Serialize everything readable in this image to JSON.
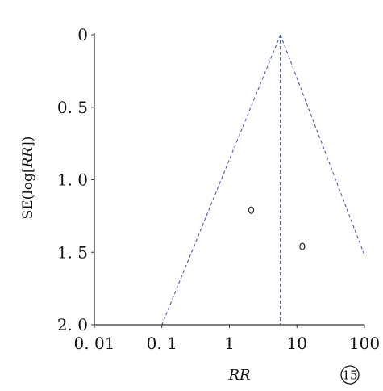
{
  "chart_data": {
    "type": "scatter",
    "subtype": "funnel-plot",
    "title": "",
    "xlabel": "RR",
    "ylabel": {
      "prefix": "SE(log[",
      "italic": "RR",
      "suffix": "])"
    },
    "x_scale": "log",
    "xlim": [
      0.01,
      100
    ],
    "x_ticks": [
      0.01,
      0.1,
      1,
      10,
      100
    ],
    "x_tick_labels": [
      "0. 01",
      "0. 1",
      "1",
      "10",
      "100"
    ],
    "y_inverted": true,
    "ylim": [
      0,
      2.0
    ],
    "y_ticks": [
      0,
      0.5,
      1.0,
      1.5,
      2.0
    ],
    "y_tick_labels": [
      "0",
      "0. 5",
      "1. 0",
      "1. 5",
      "2. 0"
    ],
    "pooled_estimate_rr": 5.7,
    "funnel": {
      "apex_rr": 5.7,
      "apex_se": 0,
      "left_base_rr": 0.1,
      "base_se": 2.0,
      "right_edge_rr": 100,
      "right_edge_se": 1.52
    },
    "points": [
      {
        "x": 2.1,
        "y": 1.21
      },
      {
        "x": 12.0,
        "y": 1.46
      }
    ],
    "grid": false,
    "legend": "none"
  },
  "figure_number": "15"
}
